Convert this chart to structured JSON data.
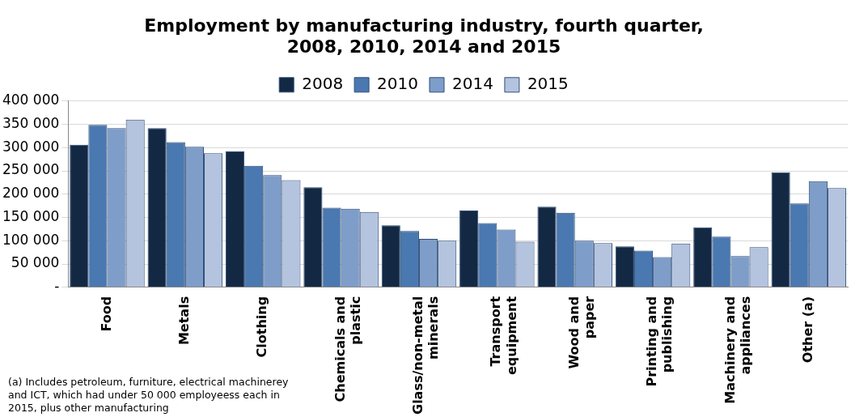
{
  "chart_data": {
    "type": "bar",
    "title": "Employment by manufacturing industry, fourth quarter, 2008, 2010, 2014 and 2015",
    "categories": [
      "Food",
      "Metals",
      "Clothing",
      "Chemicals and plastic",
      "Glass/non-metal minerals",
      "Transport equipment",
      "Wood and paper",
      "Printing and publishing",
      "Machinery and appliances",
      "Other (a)"
    ],
    "series": [
      {
        "name": "2008",
        "color": "#132843",
        "values": [
          306000,
          342000,
          292000,
          215000,
          133000,
          165000,
          173000,
          88000,
          129000,
          247000
        ]
      },
      {
        "name": "2010",
        "color": "#4a78b0",
        "values": [
          349000,
          312000,
          261000,
          171000,
          121000,
          138000,
          160000,
          79000,
          109000,
          180000
        ]
      },
      {
        "name": "2014",
        "color": "#7f9dc9",
        "values": [
          342000,
          302000,
          241000,
          169000,
          104000,
          124000,
          100000,
          65000,
          67000,
          228000
        ]
      },
      {
        "name": "2015",
        "color": "#b4c3de",
        "values": [
          360000,
          288000,
          230000,
          162000,
          100000,
          98000,
          95000,
          94000,
          86000,
          213000
        ]
      }
    ],
    "ylim": [
      0,
      400000
    ],
    "yticks": [
      {
        "value": 0,
        "label": "-"
      },
      {
        "value": 50000,
        "label": "50 000"
      },
      {
        "value": 100000,
        "label": "100 000"
      },
      {
        "value": 150000,
        "label": "150 000"
      },
      {
        "value": 200000,
        "label": "200 000"
      },
      {
        "value": 250000,
        "label": "250 000"
      },
      {
        "value": 300000,
        "label": "300 000"
      },
      {
        "value": 350000,
        "label": "350 000"
      },
      {
        "value": 400000,
        "label": "400 000"
      }
    ],
    "grid": "y",
    "legend": "top",
    "annotations": [
      "(a) Includes petroleum, furniture, electrical machinerey and ICT, which had under 50 000 employeess each in 2015, plus other manufacturing"
    ]
  }
}
